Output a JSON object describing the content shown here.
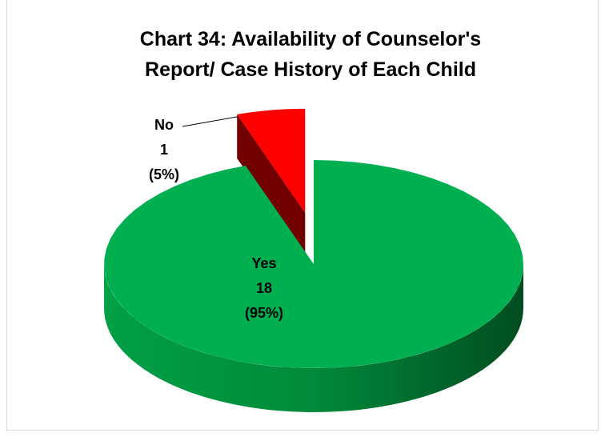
{
  "chart_data": {
    "type": "pie3d",
    "title": "Chart 34: Availability of Counselor's Report/ Case History of Each Child",
    "categories": [
      "Yes",
      "No"
    ],
    "values": [
      18,
      1
    ],
    "percent_labels": [
      "(95%)",
      "(5%)"
    ],
    "colors": [
      "#00b050",
      "#ff0000"
    ],
    "exploded": [
      false,
      true
    ]
  }
}
